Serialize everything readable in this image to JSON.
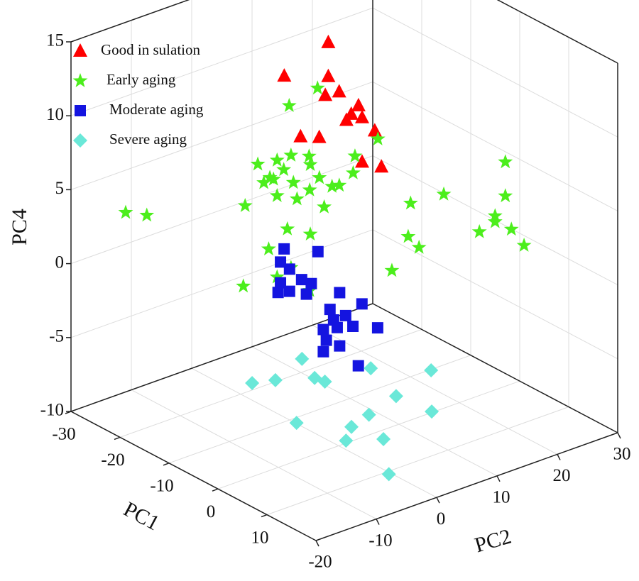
{
  "chart_data": {
    "type": "scatter3d",
    "xlabel": "PC1",
    "ylabel": "PC2",
    "zlabel": "PC4",
    "xlim": [
      -30,
      20
    ],
    "xticks": [
      -30,
      -20,
      -10,
      0,
      10
    ],
    "ylim": [
      -20,
      30
    ],
    "yticks": [
      -20,
      -10,
      0,
      10,
      20,
      30
    ],
    "zlim": [
      -10,
      15
    ],
    "zticks": [
      -10,
      -5,
      0,
      5,
      10,
      15
    ],
    "grid": true,
    "legend": "upper left",
    "series": [
      {
        "name": "Good in sulation",
        "color": "#ff0000",
        "marker": "triangle",
        "x": [
          -10,
          -10,
          -10,
          -10,
          -10,
          -10,
          -10,
          -10,
          -10,
          -10,
          -10,
          -10,
          -10,
          -10
        ],
        "y": [
          6.4,
          -0.9,
          6.4,
          5.9,
          8.2,
          11.4,
          10.2,
          9.4,
          12,
          1.8,
          4.9,
          14.1,
          12,
          15.2
        ],
        "z": [
          14.6,
          13.4,
          12.3,
          11.1,
          11.0,
          9.6,
          9.2,
          8.9,
          8.7,
          8.9,
          8.4,
          7.5,
          5.7,
          4.9
        ]
      },
      {
        "name": "Early aging",
        "color": "#4cee1c",
        "marker": "star",
        "x": [
          -25,
          -25,
          10,
          10,
          10,
          10,
          10,
          10,
          10,
          10,
          10,
          10,
          10,
          10,
          0,
          0,
          0,
          0,
          0,
          0,
          0,
          0,
          0,
          0,
          0,
          0,
          0,
          0,
          0,
          0,
          0,
          0,
          0,
          0,
          0,
          0,
          0,
          0,
          0,
          0,
          0,
          0,
          0,
          0
        ],
        "y": [
          -15,
          -11.5,
          19.5,
          9.3,
          19.5,
          3.8,
          17.8,
          17.8,
          15.2,
          20.5,
          3.4,
          5.2,
          22.6,
          0.7,
          -3.5,
          -8.2,
          6.5,
          -13.4,
          -10.2,
          -7.9,
          -4.9,
          -4.7,
          2.7,
          -9.1,
          -11.4,
          -12.4,
          -10.8,
          -7.5,
          -3.2,
          -1.1,
          2.4,
          -4.8,
          0.1,
          -10.2,
          -6.9,
          -2.4,
          -15.5,
          -8.5,
          -4.7,
          -11.6,
          -7.9,
          -10.2,
          -15.8,
          -4.8
        ],
        "z": [
          3.6,
          2.9,
          8.1,
          7.4,
          5.8,
          7.6,
          4.7,
          4.3,
          4.0,
          3.4,
          5.4,
          4.4,
          2.0,
          3.5,
          14.7,
          14.2,
          9.8,
          11.0,
          10.8,
          10.8,
          10.3,
          9.7,
          9.2,
          10.0,
          9.8,
          9.6,
          9.6,
          8.9,
          8.6,
          7.7,
          8.1,
          8.0,
          7.6,
          8.4,
          7.7,
          6.5,
          8.5,
          5.9,
          5.0,
          5.0,
          3.2,
          2.9,
          3.1,
          1.2
        ]
      },
      {
        "name": "Moderate aging",
        "color": "#1414e0",
        "marker": "square",
        "x": [
          5,
          5,
          5,
          5,
          5,
          5,
          5,
          5,
          5,
          5,
          5,
          5,
          5,
          5,
          5,
          5,
          5,
          5,
          5,
          5,
          5,
          5,
          5
        ],
        "y": [
          -13.1,
          -7.5,
          -13.7,
          -12.2,
          -10.2,
          -13.7,
          -8.6,
          -14.1,
          -12.2,
          -9.4,
          -3.9,
          -0.2,
          -5.5,
          -2.9,
          -4.9,
          -6.6,
          -4.3,
          -1.7,
          2.4,
          -6.1,
          -3.9,
          -6.6,
          -0.8
        ],
        "z": [
          6.1,
          5.1,
          5.3,
          4.6,
          3.6,
          3.9,
          3.1,
          3.3,
          3.1,
          2.5,
          1.8,
          0.5,
          0.9,
          0.1,
          0.1,
          -0.3,
          -0.5,
          -0.8,
          -1.5,
          -1.1,
          -1.8,
          -1.8,
          -3.6
        ]
      },
      {
        "name": "Severe aging",
        "color": "#6ae8d8",
        "marker": "diamond",
        "x": [
          10,
          5,
          10,
          10,
          10,
          10,
          10,
          10,
          10,
          10,
          10,
          10,
          10,
          10,
          10
        ],
        "y": [
          -14.2,
          -18.4,
          -18.6,
          -12.1,
          -10.4,
          -2.8,
          7.2,
          1.4,
          -3.1,
          7.3,
          -15.1,
          -6,
          -0.7,
          -6.9,
          0.2
        ],
        "z": [
          -0.3,
          -2.2,
          -1.1,
          -1.9,
          -2.4,
          -2.6,
          -4.2,
          -5.1,
          -5.7,
          -7.0,
          -4.5,
          -6.1,
          -7.7,
          -6.9,
          -10.2
        ]
      }
    ]
  }
}
